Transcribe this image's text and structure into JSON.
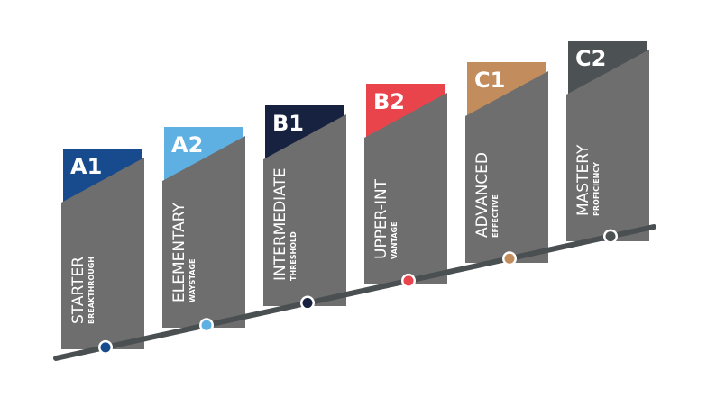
{
  "levels": [
    {
      "code": "A1",
      "name": "STARTER",
      "subtitle": "BREAKTHROUGH",
      "color": "#174b8d"
    },
    {
      "code": "A2",
      "name": "ELEMENTARY",
      "subtitle": "WAYSTAGE",
      "color": "#5fb0e2"
    },
    {
      "code": "B1",
      "name": "INTERMEDIATE",
      "subtitle": "THRESHOLD",
      "color": "#16223f"
    },
    {
      "code": "B2",
      "name": "UPPER-INT",
      "subtitle": "VANTAGE",
      "color": "#e9434b"
    },
    {
      "code": "C1",
      "name": "ADVANCED",
      "subtitle": "EFFECTIVE",
      "color": "#c28c5c"
    },
    {
      "code": "C2",
      "name": "MASTERY",
      "subtitle": "PROFICIENCY",
      "color": "#4c5153"
    }
  ]
}
